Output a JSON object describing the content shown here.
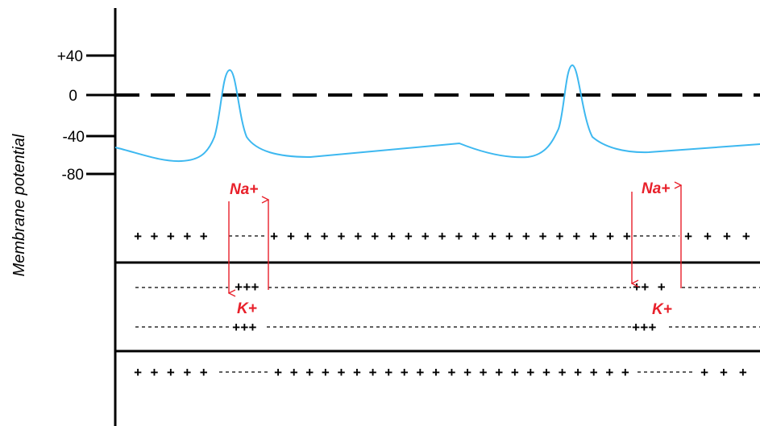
{
  "diagram": {
    "ylabel": "Membrane potential",
    "ticks": [
      "+40",
      "0",
      "-40",
      "-80"
    ],
    "colors": {
      "trace": "#3db8f0",
      "ion": "#e8202a",
      "line": "#000000"
    },
    "events": [
      {
        "na_label": "Na+",
        "k_label": "K+",
        "inner_charges_top": "+++",
        "inner_charges_bottom": "+++"
      },
      {
        "na_label": "Na+",
        "k_label": "K+",
        "inner_charges_top": "++ +",
        "inner_charges_bottom": "+++"
      }
    ],
    "outer_charges_top": {
      "left": "+ + + + +",
      "right_of_first": "+ + + + + + + + + + + + + + + + + + + + + +",
      "right_of_second": "+ + + +"
    },
    "outer_charges_bottom": {
      "left": "+ + + + +",
      "right_of_first": "+ + + + + + + + + + + + + + + + + + + + + + +",
      "right_of_second": "+ + +"
    }
  }
}
